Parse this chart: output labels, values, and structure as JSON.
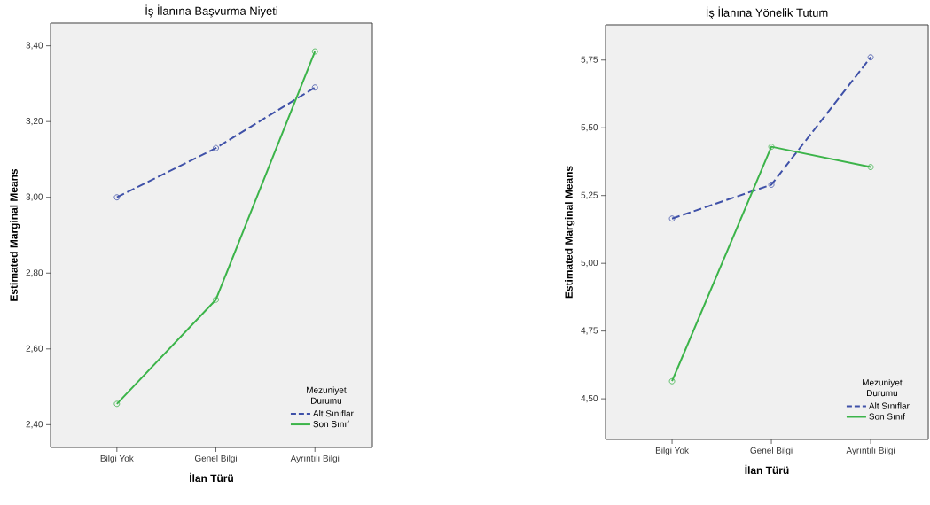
{
  "chart_data": [
    {
      "type": "line",
      "title": "İş İlanına Başvurma Niyeti",
      "xlabel": "İlan Türü",
      "ylabel": "Estimated Marginal Means",
      "legend_title": "Mezuniyet Durumu",
      "legend": "bottom right",
      "marker": "circle",
      "grid": false,
      "categories": [
        "Bilgi Yok",
        "Genel Bilgi",
        "Ayrıntılı Bilgi"
      ],
      "series": [
        {
          "name": "Alt Sınıflar",
          "color": "#3f51a8",
          "line_style": "dashed",
          "values": [
            3.0,
            3.13,
            3.29
          ]
        },
        {
          "name": "Son Sınıf",
          "color": "#3cb44a",
          "line_style": "solid",
          "values": [
            2.455,
            2.73,
            3.385
          ]
        }
      ],
      "ylim": [
        2.34,
        3.46
      ],
      "yticks": [
        {
          "value": 2.4,
          "label": "2,40"
        },
        {
          "value": 2.6,
          "label": "2,60"
        },
        {
          "value": 2.8,
          "label": "2,80"
        },
        {
          "value": 3.0,
          "label": "3,00"
        },
        {
          "value": 3.2,
          "label": "3,20"
        },
        {
          "value": 3.4,
          "label": "3,40"
        }
      ]
    },
    {
      "type": "line",
      "title": "İş İlanına Yönelik Tutum",
      "xlabel": "İlan Türü",
      "ylabel": "Estimated Marginal Means",
      "legend_title": "Mezuniyet Durumu",
      "legend": "bottom right",
      "marker": "circle",
      "grid": false,
      "categories": [
        "Bilgi Yok",
        "Genel Bilgi",
        "Ayrıntılı Bilgi"
      ],
      "series": [
        {
          "name": "Alt Sınıflar",
          "color": "#3f51a8",
          "line_style": "dashed",
          "values": [
            5.165,
            5.29,
            5.76
          ]
        },
        {
          "name": "Son Sınıf",
          "color": "#3cb44a",
          "line_style": "solid",
          "values": [
            4.565,
            5.43,
            5.355
          ]
        }
      ],
      "ylim": [
        4.35,
        5.88
      ],
      "yticks": [
        {
          "value": 4.5,
          "label": "4,50"
        },
        {
          "value": 4.75,
          "label": "4,75"
        },
        {
          "value": 5.0,
          "label": "5,00"
        },
        {
          "value": 5.25,
          "label": "5,25"
        },
        {
          "value": 5.5,
          "label": "5,50"
        },
        {
          "value": 5.75,
          "label": "5,75"
        }
      ]
    }
  ]
}
